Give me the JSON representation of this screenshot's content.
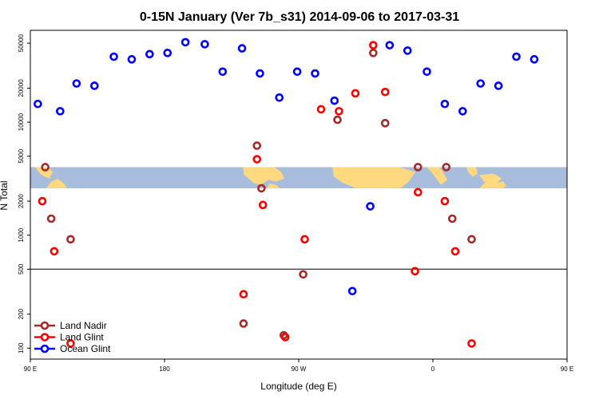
{
  "chart_data": {
    "type": "scatter",
    "title": "0-15N January (Ver 7b_s31)   2014-09-06 to 2017-03-31",
    "xlabel": "Longitude (deg E)",
    "ylabel": "N Total",
    "xlim": [
      90,
      450
    ],
    "ylim": [
      80,
      65000
    ],
    "y_scale": "log",
    "x_ticks": [
      {
        "value": 90,
        "label": "90 E"
      },
      {
        "value": 180,
        "label": "180"
      },
      {
        "value": 270,
        "label": "90 W"
      },
      {
        "value": 360,
        "label": "0"
      },
      {
        "value": 450,
        "label": "90 E"
      },
      {
        "value": 540,
        "label": "180"
      }
    ],
    "y_ticks": [
      {
        "value": 100,
        "label": "100"
      },
      {
        "value": 200,
        "label": "200"
      },
      {
        "value": 500,
        "label": "500"
      },
      {
        "value": 1000,
        "label": "1000"
      },
      {
        "value": 2000,
        "label": "2000"
      },
      {
        "value": 5000,
        "label": "5000"
      },
      {
        "value": 10000,
        "label": "10000"
      },
      {
        "value": 20000,
        "label": "20000"
      },
      {
        "value": 50000,
        "label": "50000"
      }
    ],
    "hline": 500,
    "map_band": {
      "y_top": 4000,
      "y_bottom": 2600,
      "lon_start": 90
    },
    "grid": false,
    "legend_position": "bottom-left",
    "series": [
      {
        "name": "Land Nadir",
        "color": "#a52a2a",
        "points": [
          {
            "x": 100,
            "y": 4000
          },
          {
            "x": 104,
            "y": 1400
          },
          {
            "x": 117,
            "y": 920
          },
          {
            "x": 233,
            "y": 165
          },
          {
            "x": 242,
            "y": 6200
          },
          {
            "x": 245,
            "y": 2600
          },
          {
            "x": 260,
            "y": 130
          },
          {
            "x": 273,
            "y": 450
          },
          {
            "x": 296,
            "y": 10500
          },
          {
            "x": 320,
            "y": 41000
          },
          {
            "x": 328,
            "y": 9800
          },
          {
            "x": 350,
            "y": 4000
          },
          {
            "x": 369,
            "y": 4000
          },
          {
            "x": 373,
            "y": 1400
          },
          {
            "x": 386,
            "y": 920
          }
        ]
      },
      {
        "name": "Land Glint",
        "color": "#ff0000",
        "points": [
          {
            "x": 98,
            "y": 2000
          },
          {
            "x": 106,
            "y": 720
          },
          {
            "x": 117,
            "y": 110
          },
          {
            "x": 233,
            "y": 300
          },
          {
            "x": 242,
            "y": 4700
          },
          {
            "x": 246,
            "y": 1850
          },
          {
            "x": 261,
            "y": 125
          },
          {
            "x": 274,
            "y": 920
          },
          {
            "x": 285,
            "y": 13000
          },
          {
            "x": 297,
            "y": 12500
          },
          {
            "x": 308,
            "y": 18000
          },
          {
            "x": 320,
            "y": 48000
          },
          {
            "x": 328,
            "y": 18500
          },
          {
            "x": 348,
            "y": 480
          },
          {
            "x": 350,
            "y": 2400
          },
          {
            "x": 368,
            "y": 2000
          },
          {
            "x": 375,
            "y": 720
          },
          {
            "x": 386,
            "y": 110
          }
        ]
      },
      {
        "name": "Ocean Glint",
        "color": "#0000ff",
        "points": [
          {
            "x": 95,
            "y": 14500
          },
          {
            "x": 110,
            "y": 12500
          },
          {
            "x": 121,
            "y": 22000
          },
          {
            "x": 133,
            "y": 21000
          },
          {
            "x": 146,
            "y": 38000
          },
          {
            "x": 158,
            "y": 36000
          },
          {
            "x": 170,
            "y": 40000
          },
          {
            "x": 182,
            "y": 41000
          },
          {
            "x": 194,
            "y": 51000
          },
          {
            "x": 207,
            "y": 49000
          },
          {
            "x": 219,
            "y": 28000
          },
          {
            "x": 232,
            "y": 45000
          },
          {
            "x": 244,
            "y": 27000
          },
          {
            "x": 257,
            "y": 16500
          },
          {
            "x": 269,
            "y": 28000
          },
          {
            "x": 281,
            "y": 27000
          },
          {
            "x": 294,
            "y": 15500
          },
          {
            "x": 306,
            "y": 320
          },
          {
            "x": 318,
            "y": 1800
          },
          {
            "x": 331,
            "y": 48000
          },
          {
            "x": 343,
            "y": 43000
          },
          {
            "x": 356,
            "y": 28000
          },
          {
            "x": 368,
            "y": 14500
          },
          {
            "x": 380,
            "y": 12500
          },
          {
            "x": 392,
            "y": 22000
          },
          {
            "x": 404,
            "y": 21000
          },
          {
            "x": 416,
            "y": 38000
          },
          {
            "x": 428,
            "y": 36000
          }
        ]
      }
    ]
  }
}
